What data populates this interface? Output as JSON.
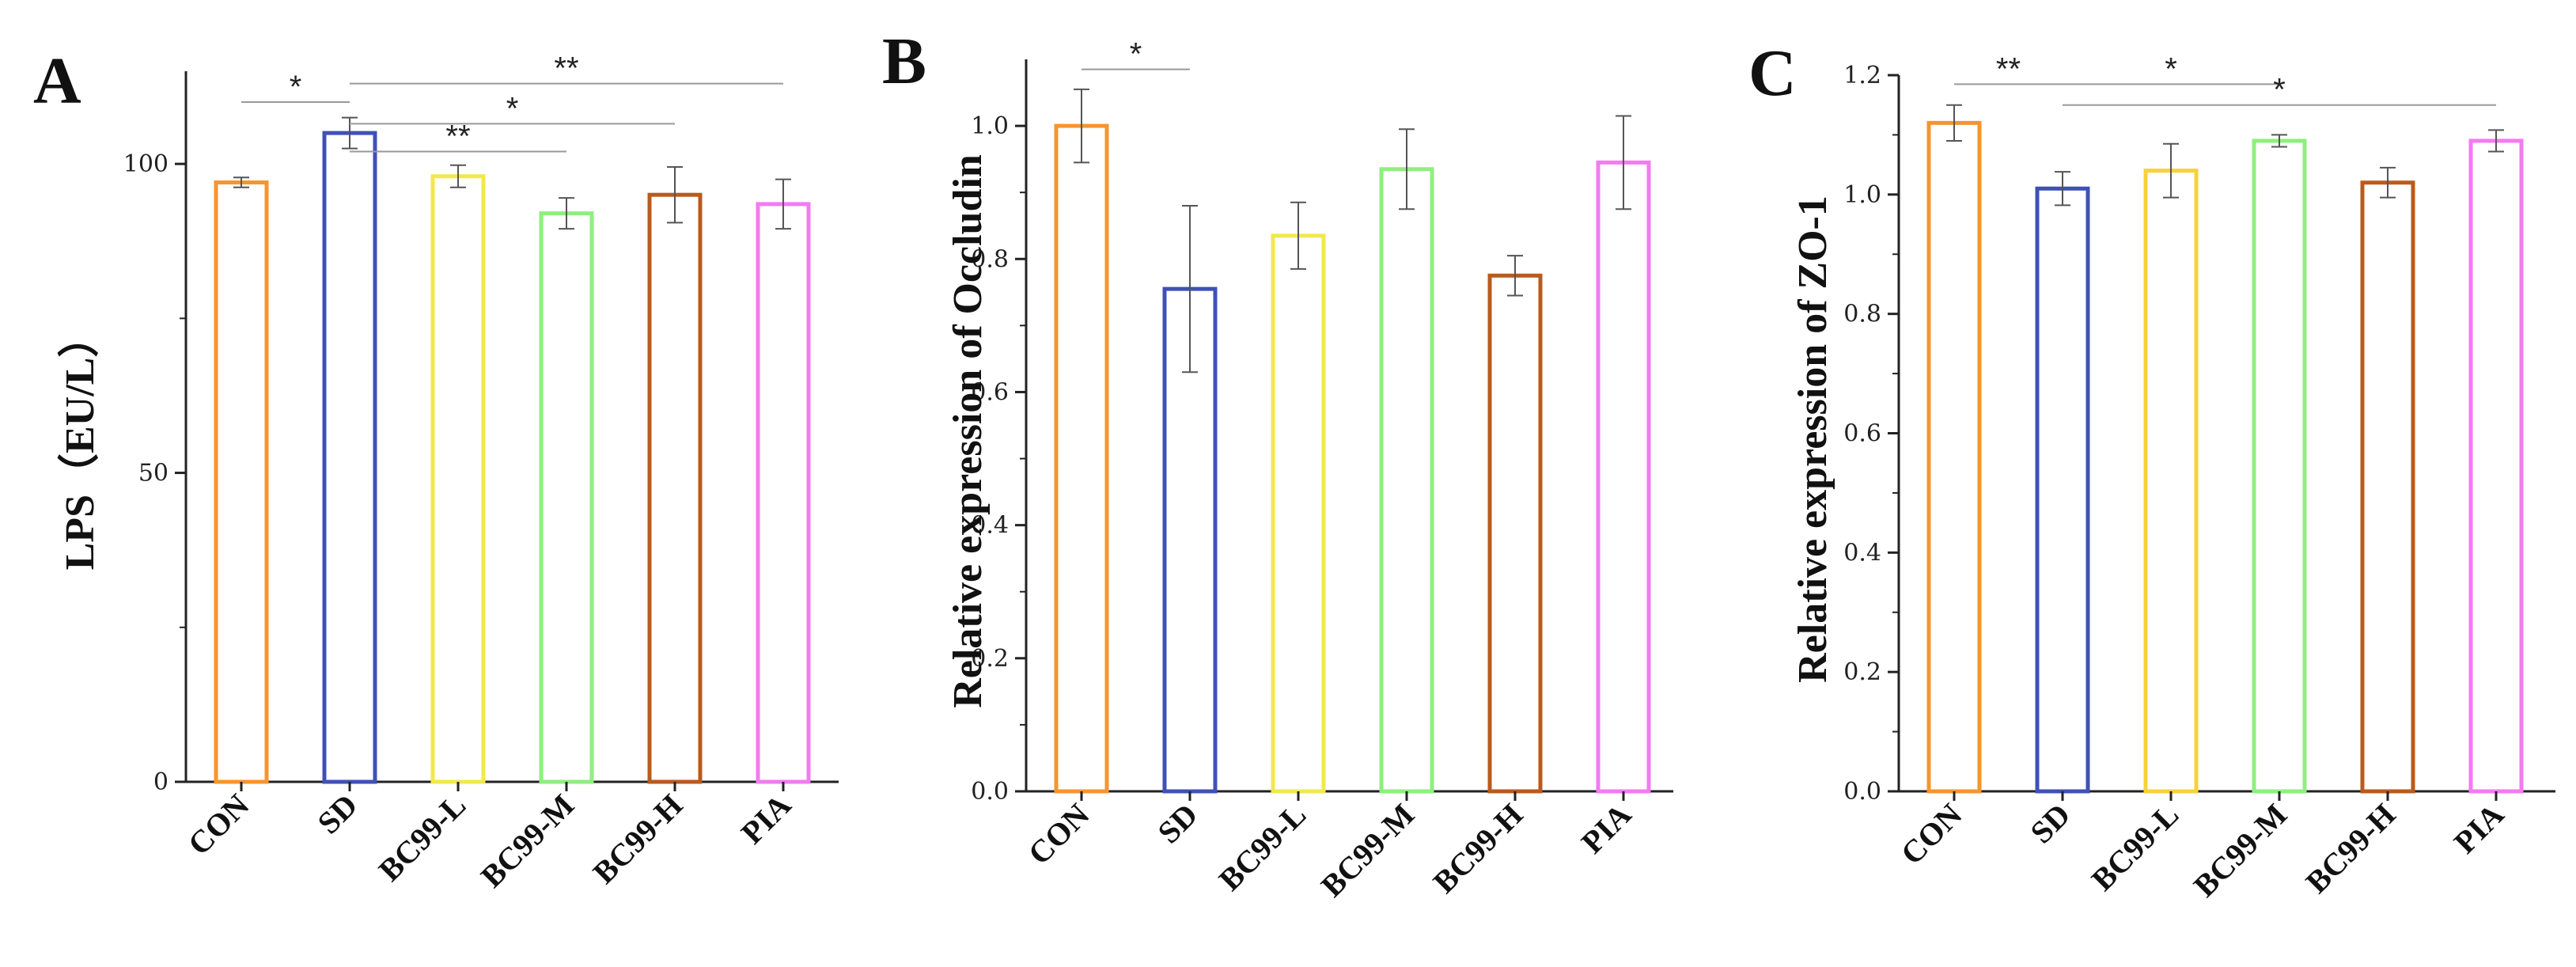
{
  "chart_data": [
    {
      "type": "bar",
      "panel_label": "A",
      "ylabel": "LPS（EU/L）",
      "ylim": [
        0,
        115
      ],
      "yticks": [
        0,
        50,
        100
      ],
      "categories": [
        "CON",
        "SD",
        "BC99-L",
        "BC99-M",
        "BC99-H",
        "PIA"
      ],
      "values": [
        97,
        105,
        98,
        92,
        95,
        93.5
      ],
      "errors": [
        0.8,
        2.5,
        1.8,
        2.5,
        4.5,
        4.0
      ],
      "colors": [
        "#F7942E",
        "#3F51B5",
        "#F1E84D",
        "#8EEF7E",
        "#B95B1C",
        "#F47AF2"
      ],
      "significance": [
        {
          "from": "CON",
          "to": "SD",
          "label": "*",
          "y": 110
        },
        {
          "from": "SD",
          "to": "BC99-M",
          "label": "**",
          "y": 102
        },
        {
          "from": "SD",
          "to": "BC99-H",
          "label": "*",
          "y": 106.5
        },
        {
          "from": "SD",
          "to": "PIA",
          "label": "**",
          "y": 113
        }
      ],
      "grid": false
    },
    {
      "type": "bar",
      "panel_label": "B",
      "ylabel": "Relative expression of Occludin",
      "ylim": [
        0,
        1.1
      ],
      "yticks": [
        0.0,
        0.2,
        0.4,
        0.6,
        0.8,
        1.0
      ],
      "ytick_labels": [
        "0.0",
        "0.2",
        "0.4",
        "0.6",
        "0.8",
        "1.0"
      ],
      "categories": [
        "CON",
        "SD",
        "BC99-L",
        "BC99-M",
        "BC99-H",
        "PIA"
      ],
      "values": [
        1.0,
        0.755,
        0.835,
        0.935,
        0.775,
        0.945
      ],
      "errors": [
        0.055,
        0.125,
        0.05,
        0.06,
        0.03,
        0.07
      ],
      "colors": [
        "#F7942E",
        "#3F51B5",
        "#F1E84D",
        "#8EEF7E",
        "#B95B1C",
        "#F47AF2"
      ],
      "significance": [
        {
          "from": "CON",
          "to": "SD",
          "label": "*",
          "y": 1.085
        }
      ],
      "grid": false
    },
    {
      "type": "bar",
      "panel_label": "C",
      "ylabel": "Relative expression of  ZO-1",
      "ylim": [
        0,
        1.2
      ],
      "yticks": [
        0.0,
        0.2,
        0.4,
        0.6,
        0.8,
        1.0,
        1.2
      ],
      "ytick_labels": [
        "0.0",
        "0.2",
        "0.4",
        "0.6",
        "0.8",
        "1.0",
        "1.2"
      ],
      "categories": [
        "CON",
        "SD",
        "BC99-L",
        "BC99-M",
        "BC99-H",
        "PIA"
      ],
      "values": [
        1.12,
        1.01,
        1.04,
        1.09,
        1.02,
        1.09
      ],
      "errors": [
        0.03,
        0.028,
        0.045,
        0.01,
        0.025,
        0.018
      ],
      "colors": [
        "#F7942E",
        "#3F51B5",
        "#F8D03A",
        "#8EEF7E",
        "#B95B1C",
        "#F47AF2"
      ],
      "significance": [
        {
          "from": "CON",
          "to": "SD",
          "label": "**",
          "y": 1.185
        },
        {
          "from": "SD",
          "to": "BC99-M",
          "label": "*",
          "y": 1.185
        },
        {
          "from": "SD",
          "to": "PIA",
          "label": "*",
          "y": 1.15
        }
      ],
      "grid": false
    }
  ]
}
